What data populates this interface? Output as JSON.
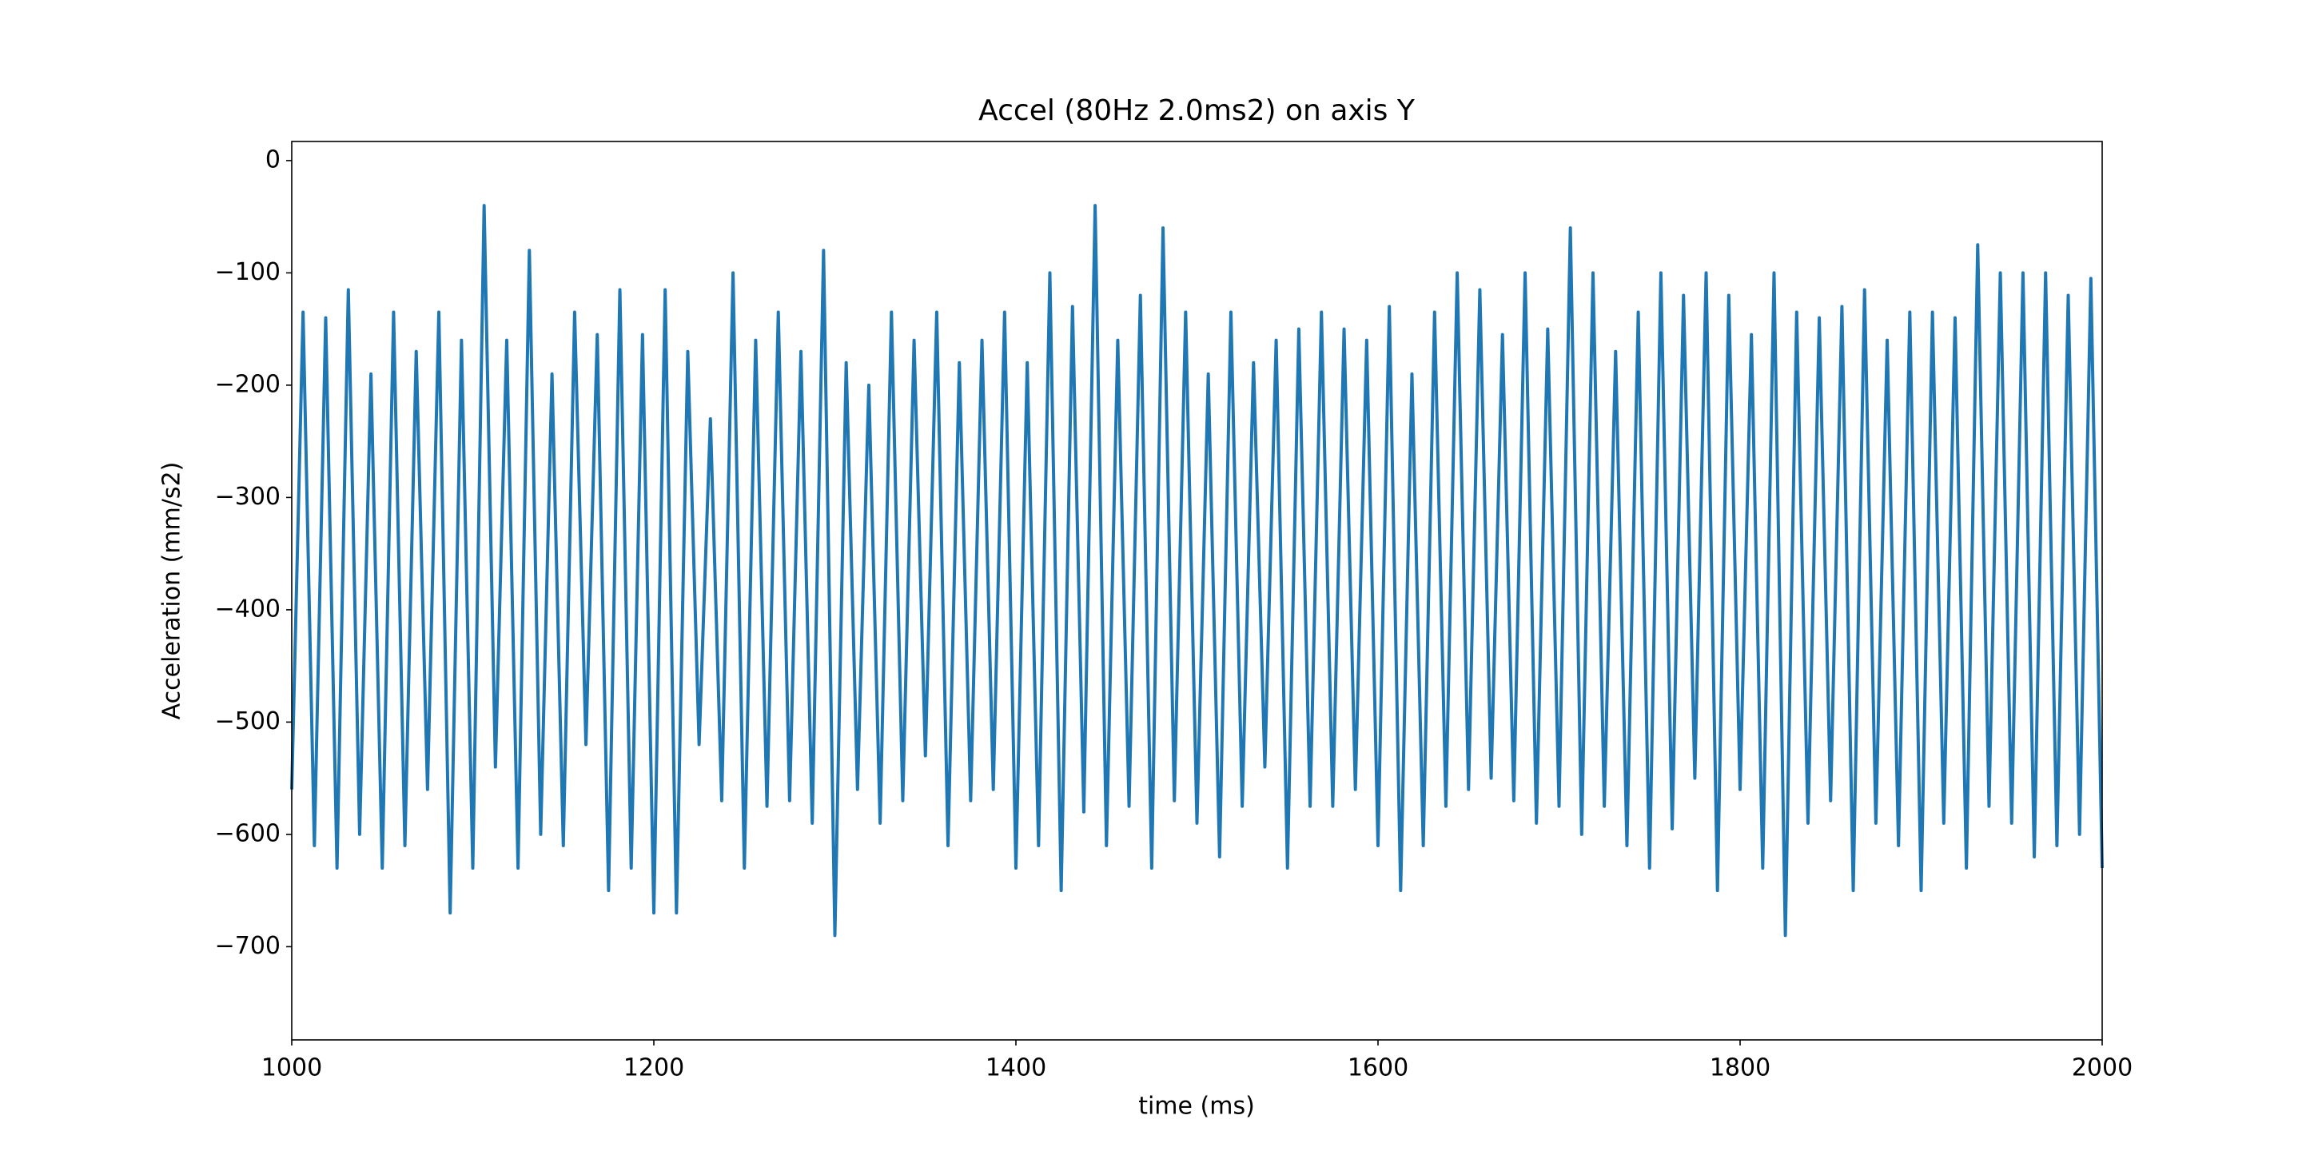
{
  "chart_data": {
    "type": "line",
    "title": "Accel (80Hz 2.0ms2) on axis Y",
    "xlabel": "time (ms)",
    "ylabel": "Acceleration (mm/s2)",
    "color": "#1f77b4",
    "xlim": [
      1000,
      2000
    ],
    "xticks": [
      1000,
      1200,
      1400,
      1600,
      1800,
      2000
    ],
    "ylim": [
      -783,
      17
    ],
    "yticks": [
      0,
      {
        "value": -100,
        "label": "−100"
      },
      {
        "value": -200,
        "label": "−200"
      },
      {
        "value": -300,
        "label": "−300"
      },
      {
        "value": -400,
        "label": "−400"
      },
      {
        "value": -500,
        "label": "−500"
      },
      {
        "value": -600,
        "label": "−600"
      },
      {
        "value": -700,
        "label": "−700"
      }
    ],
    "x": [
      1000,
      1006.25,
      1012.5,
      1018.75,
      1025,
      1031.25,
      1037.5,
      1043.75,
      1050,
      1056.25,
      1062.5,
      1068.75,
      1075,
      1081.25,
      1087.5,
      1093.75,
      1100,
      1106.25,
      1112.5,
      1118.75,
      1125,
      1131.25,
      1137.5,
      1143.75,
      1150,
      1156.25,
      1162.5,
      1168.75,
      1175,
      1181.25,
      1187.5,
      1193.75,
      1200,
      1206.25,
      1212.5,
      1218.75,
      1225,
      1231.25,
      1237.5,
      1243.75,
      1250,
      1256.25,
      1262.5,
      1268.75,
      1275,
      1281.25,
      1287.5,
      1293.75,
      1300,
      1306.25,
      1312.5,
      1318.75,
      1325,
      1331.25,
      1337.5,
      1343.75,
      1350,
      1356.25,
      1362.5,
      1368.75,
      1375,
      1381.25,
      1387.5,
      1393.75,
      1400,
      1406.25,
      1412.5,
      1418.75,
      1425,
      1431.25,
      1437.5,
      1443.75,
      1450,
      1456.25,
      1462.5,
      1468.75,
      1475,
      1481.25,
      1487.5,
      1493.75,
      1500,
      1506.25,
      1512.5,
      1518.75,
      1525,
      1531.25,
      1537.5,
      1543.75,
      1550,
      1556.25,
      1562.5,
      1568.75,
      1575,
      1581.25,
      1587.5,
      1593.75,
      1600,
      1606.25,
      1612.5,
      1618.75,
      1625,
      1631.25,
      1637.5,
      1643.75,
      1650,
      1656.25,
      1662.5,
      1668.75,
      1675,
      1681.25,
      1687.5,
      1693.75,
      1700,
      1706.25,
      1712.5,
      1718.75,
      1725,
      1731.25,
      1737.5,
      1743.75,
      1750,
      1756.25,
      1762.5,
      1768.75,
      1775,
      1781.25,
      1787.5,
      1793.75,
      1800,
      1806.25,
      1812.5,
      1818.75,
      1825,
      1831.25,
      1837.5,
      1843.75,
      1850,
      1856.25,
      1862.5,
      1868.75,
      1875,
      1881.25,
      1887.5,
      1893.75,
      1900,
      1906.25,
      1912.5,
      1918.75,
      1925,
      1931.25,
      1937.5,
      1943.75,
      1950,
      1956.25,
      1962.5,
      1968.75,
      1975,
      1981.25,
      1987.5,
      1993.75,
      2000
    ],
    "values": [
      -560,
      -135,
      -610,
      -140,
      -630,
      -115,
      -600,
      -190,
      -630,
      -135,
      -610,
      -170,
      -560,
      -135,
      -670,
      -160,
      -630,
      -40,
      -540,
      -160,
      -630,
      -80,
      -600,
      -190,
      -610,
      -135,
      -520,
      -155,
      -650,
      -115,
      -630,
      -155,
      -670,
      -115,
      -670,
      -170,
      -520,
      -230,
      -570,
      -100,
      -630,
      -160,
      -575,
      -135,
      -570,
      -170,
      -590,
      -80,
      -690,
      -180,
      -560,
      -200,
      -590,
      -135,
      -570,
      -160,
      -530,
      -135,
      -610,
      -180,
      -570,
      -160,
      -560,
      -135,
      -630,
      -180,
      -610,
      -100,
      -650,
      -130,
      -580,
      -40,
      -610,
      -160,
      -575,
      -120,
      -630,
      -60,
      -570,
      -135,
      -590,
      -190,
      -620,
      -135,
      -575,
      -180,
      -540,
      -160,
      -630,
      -150,
      -575,
      -135,
      -575,
      -150,
      -560,
      -160,
      -610,
      -130,
      -650,
      -190,
      -610,
      -135,
      -575,
      -100,
      -560,
      -115,
      -550,
      -155,
      -570,
      -100,
      -590,
      -150,
      -575,
      -60,
      -600,
      -100,
      -575,
      -170,
      -610,
      -135,
      -630,
      -100,
      -595,
      -120,
      -550,
      -100,
      -650,
      -120,
      -560,
      -155,
      -630,
      -100,
      -690,
      -135,
      -590,
      -140,
      -570,
      -130,
      -650,
      -115,
      -590,
      -160,
      -610,
      -135,
      -650,
      -135,
      -590,
      -140,
      -630,
      -75,
      -575,
      -100,
      -590,
      -100,
      -620,
      -100,
      -610,
      -120,
      -600,
      -105,
      -630
    ]
  }
}
